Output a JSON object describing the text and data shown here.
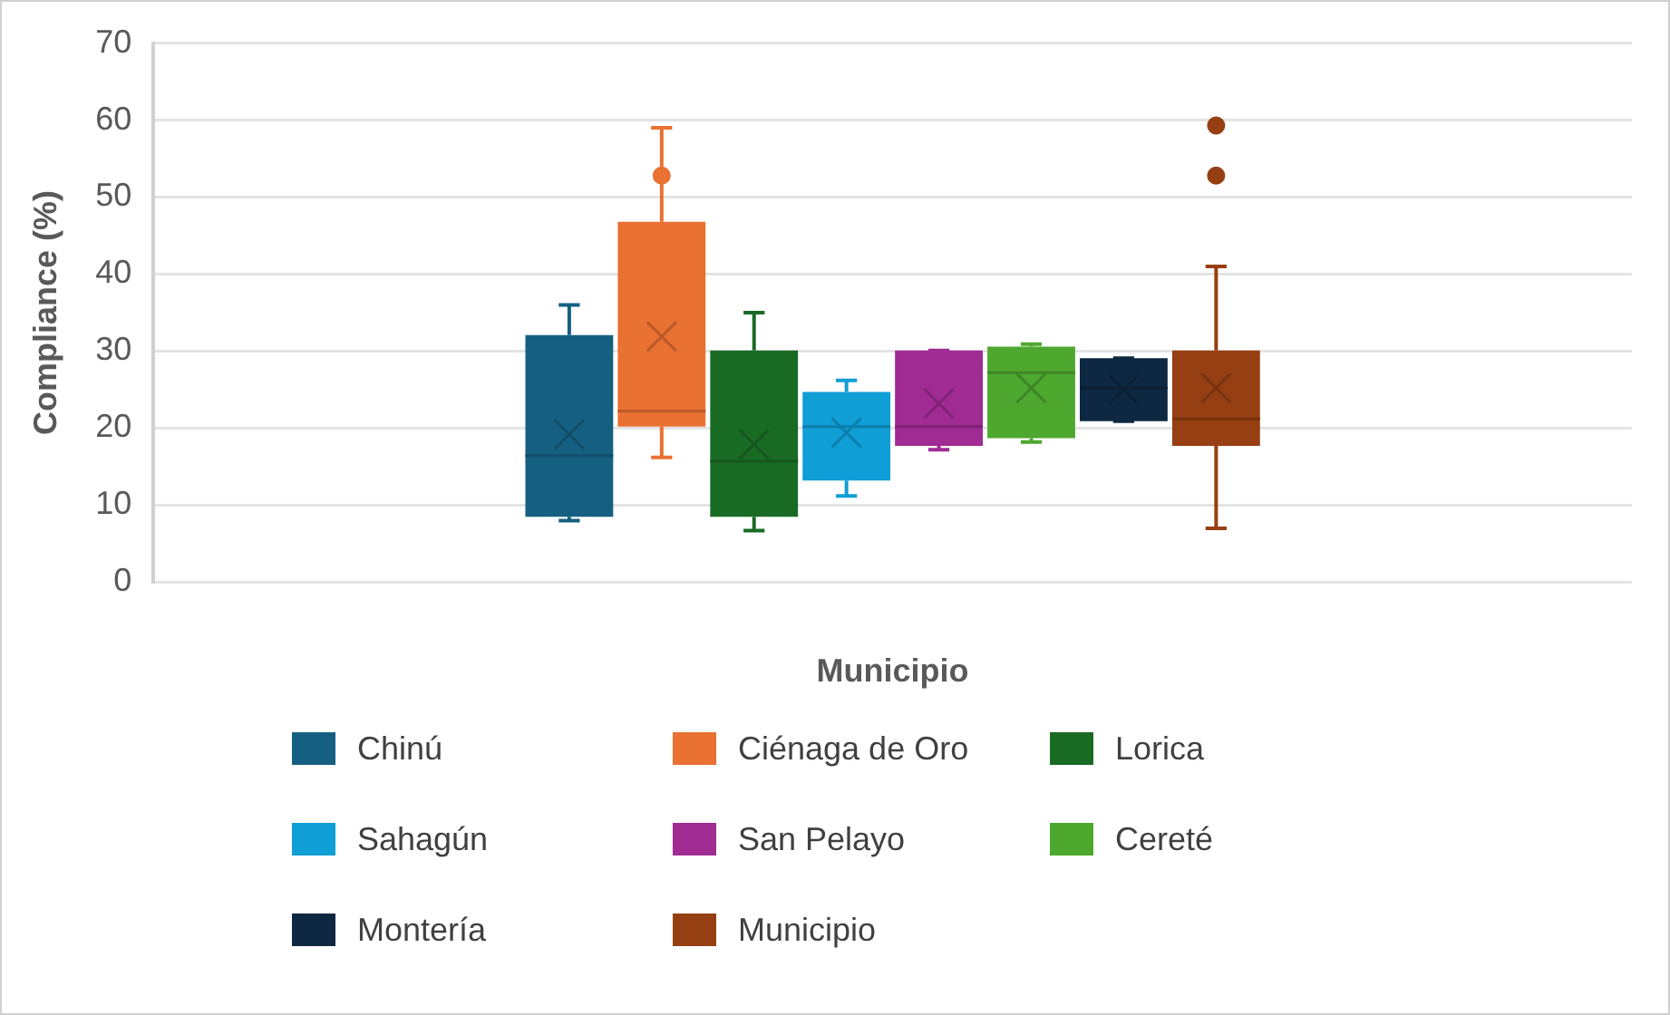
{
  "chart_data": {
    "type": "box",
    "xlabel": "Municipio",
    "ylabel": "Compliance (%)",
    "categories": [
      null
    ],
    "ylim": [
      0,
      70
    ],
    "yticks": [
      0,
      10,
      20,
      30,
      40,
      50,
      60,
      70
    ],
    "grid": "y",
    "legend": "bottom",
    "series": [
      {
        "name": "Chinú",
        "color": "#156082",
        "boxes": [
          {
            "low": 8,
            "q1": 8.5,
            "median": 16.4,
            "q3": 32.1,
            "high": 36,
            "mean": 19.2
          }
        ]
      },
      {
        "name": "Ciénaga de Oro",
        "color": "#e97132",
        "boxes": [
          {
            "low": 16.2,
            "q1": 20.2,
            "median": 22.2,
            "q3": 46.8,
            "high": 59,
            "mean": 31.9,
            "outliers": [
              52.8
            ]
          }
        ]
      },
      {
        "name": "Lorica",
        "color": "#196b24",
        "boxes": [
          {
            "low": 6.7,
            "q1": 8.5,
            "median": 15.7,
            "q3": 30.1,
            "high": 35,
            "mean": 17.9
          }
        ]
      },
      {
        "name": "Sahagún",
        "color": "#0f9ed5",
        "boxes": [
          {
            "low": 11.2,
            "q1": 13.2,
            "median": 20.2,
            "q3": 24.7,
            "high": 26.2,
            "mean": 19.4
          }
        ]
      },
      {
        "name": "San Pelayo",
        "color": "#a02b93",
        "boxes": [
          {
            "low": 17.2,
            "q1": 17.7,
            "median": 20.2,
            "q3": 30.1,
            "high": 30.1,
            "mean": 23.2
          }
        ]
      },
      {
        "name": "Cereté",
        "color": "#4ea72e",
        "boxes": [
          {
            "low": 18.2,
            "q1": 18.7,
            "median": 27.2,
            "q3": 30.6,
            "high": 30.9,
            "mean": 25.2
          }
        ]
      },
      {
        "name": "Montería",
        "color": "#0e2841",
        "boxes": [
          {
            "low": 20.9,
            "q1": 20.9,
            "median": 25.2,
            "q3": 29.1,
            "high": 29.1,
            "mean": 25
          }
        ]
      },
      {
        "name": "Municipio",
        "color": "#963f12",
        "boxes": [
          {
            "low": 7,
            "q1": 17.7,
            "median": 21.2,
            "q3": 30.1,
            "high": 41,
            "mean": 25.2,
            "outliers": [
              52.8,
              59.3
            ]
          }
        ]
      }
    ]
  }
}
